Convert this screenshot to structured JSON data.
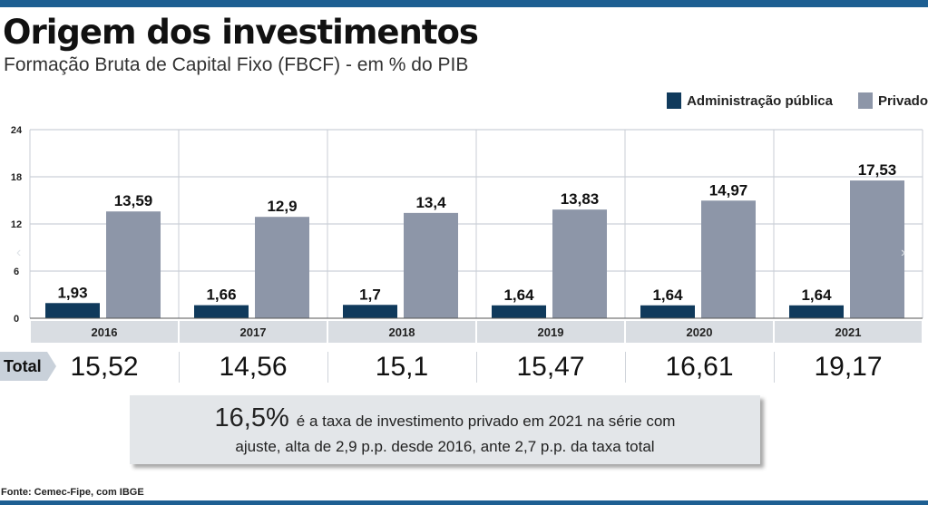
{
  "header": {
    "title": "Origem dos investimentos",
    "subtitle": "Formação Bruta de Capital Fixo (FBCF) - em % do PIB"
  },
  "chart_data": {
    "type": "bar",
    "categories": [
      "2016",
      "2017",
      "2018",
      "2019",
      "2020",
      "2021"
    ],
    "series": [
      {
        "name": "Administração pública",
        "values": [
          1.93,
          1.66,
          1.7,
          1.64,
          1.64,
          1.64
        ],
        "labels": [
          "1,93",
          "1,66",
          "1,7",
          "1,64",
          "1,64",
          "1,64"
        ],
        "color": "#103a5c"
      },
      {
        "name": "Privado",
        "values": [
          13.59,
          12.9,
          13.4,
          13.83,
          14.97,
          17.53
        ],
        "labels": [
          "13,59",
          "12,9",
          "13,4",
          "13,83",
          "14,97",
          "17,53"
        ],
        "color": "#8d96a8"
      }
    ],
    "ylim": [
      0,
      24
    ],
    "yticks": [
      0,
      6,
      12,
      18,
      24
    ],
    "grid": true,
    "legend_position": "top-right"
  },
  "totals": {
    "label": "Total",
    "values": [
      "15,52",
      "14,56",
      "15,1",
      "15,47",
      "16,61",
      "19,17"
    ]
  },
  "callout": {
    "highlight": "16,5%",
    "line1_rest": "é a taxa de investimento privado em 2021 na série com",
    "line2": "ajuste, alta de 2,9 p.p. desde 2016, ante 2,7 p.p. da taxa total"
  },
  "source": "Fonte: Cemec-Fipe, com IBGE",
  "colors": {
    "accent_bar": "#1d5f92",
    "year_band": "#d9dde2"
  }
}
